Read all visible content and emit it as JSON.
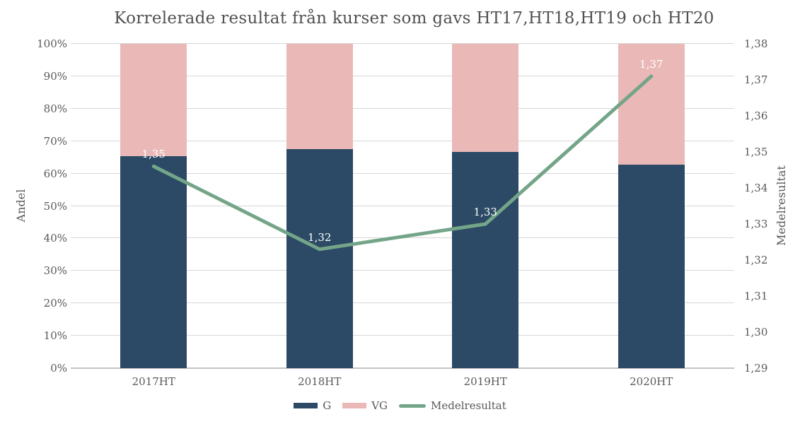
{
  "chart_data": {
    "type": "combo-stacked-bar-line",
    "title": "Korrelerade resultat från kurser som gavs HT17,HT18,HT19 och HT20",
    "categories": [
      "2017HT",
      "2018HT",
      "2019HT",
      "2020HT"
    ],
    "series": [
      {
        "name": "G",
        "type": "bar-stacked",
        "axis": "left",
        "unit": "%",
        "values": [
          65.4,
          67.5,
          66.7,
          62.7
        ],
        "color": "#2c4a65"
      },
      {
        "name": "VG",
        "type": "bar-stacked",
        "axis": "left",
        "unit": "%",
        "values": [
          34.6,
          32.5,
          33.3,
          37.3
        ],
        "color": "#eab9b7"
      },
      {
        "name": "Medelresultat",
        "type": "line",
        "axis": "right",
        "values": [
          1.346,
          1.323,
          1.33,
          1.371
        ],
        "point_labels": [
          "1,35",
          "1,32",
          "1,33",
          "1,37"
        ],
        "color": "#74a589"
      }
    ],
    "axes": {
      "left": {
        "title": "Andel",
        "min": 0,
        "max": 100,
        "ticks": [
          "0%",
          "10%",
          "20%",
          "30%",
          "40%",
          "50%",
          "60%",
          "70%",
          "80%",
          "90%",
          "100%"
        ]
      },
      "right": {
        "title": "Medelresultat",
        "min": 1.29,
        "max": 1.38,
        "ticks": [
          "1,29",
          "1,30",
          "1,31",
          "1,32",
          "1,33",
          "1,34",
          "1,35",
          "1,36",
          "1,37",
          "1,38"
        ]
      }
    },
    "legend": [
      {
        "label": "G",
        "swatch": "rect",
        "color": "#2c4a65"
      },
      {
        "label": "VG",
        "swatch": "rect",
        "color": "#eab9b7"
      },
      {
        "label": "Medelresultat",
        "swatch": "line",
        "color": "#74a589"
      }
    ],
    "grid": true,
    "legend_position": "bottom",
    "style": {
      "gridline_color": "#d7d7d7",
      "baseline_color": "#c3c3c3",
      "text_color": "#595959",
      "data_label_color": "#ffffff",
      "background": "#ffffff"
    }
  }
}
